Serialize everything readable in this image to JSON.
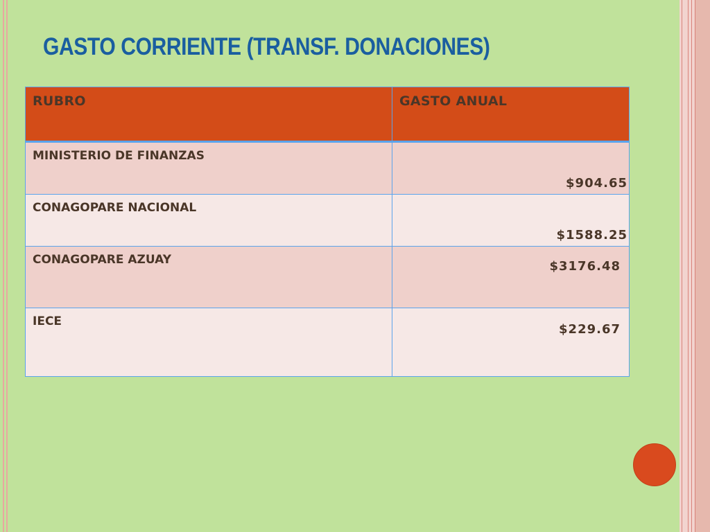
{
  "slide": {
    "title": "GASTO CORRIENTE (TRANSF. DONACIONES)"
  },
  "table": {
    "headers": [
      "RUBRO",
      "GASTO ANUAL"
    ],
    "rows": [
      {
        "rubro": "MINISTERIO DE FINANZAS",
        "gasto": "$904.65"
      },
      {
        "rubro": "CONAGOPARE NACIONAL",
        "gasto": "$1588.25"
      },
      {
        "rubro": "CONAGOPARE AZUAY",
        "gasto": "$3176.48"
      },
      {
        "rubro": "IECE",
        "gasto": "$229.67"
      }
    ]
  },
  "colors": {
    "background": "#c0e29b",
    "title": "#1a5ea0",
    "header": "#d34c18",
    "row_odd": "#efd0cb",
    "row_even": "#f6e8e6",
    "accent_dot": "#d94a1e"
  }
}
